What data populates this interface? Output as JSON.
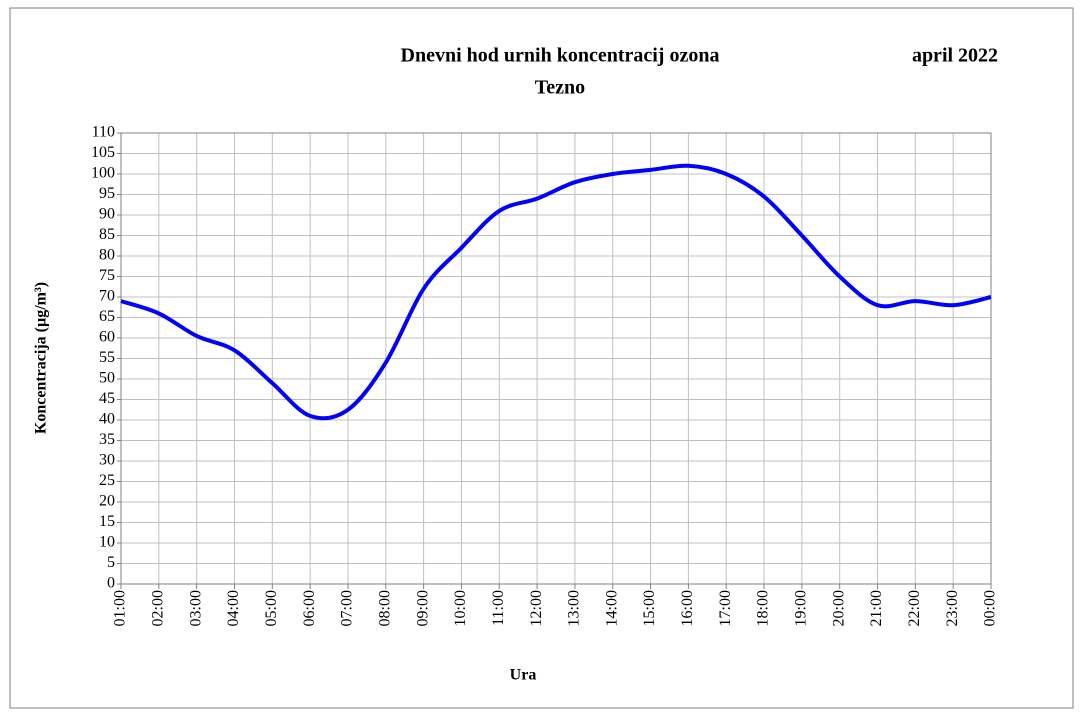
{
  "chart_data": {
    "type": "line",
    "title": "Dnevni hod urnih koncentracij ozona",
    "subtitle": "Tezno",
    "annotation": "april 2022",
    "x_label": "Ura",
    "y_label": "Koncentracija  (µg/m³)",
    "categories": [
      "01:00",
      "02:00",
      "03:00",
      "04:00",
      "05:00",
      "06:00",
      "07:00",
      "08:00",
      "09:00",
      "10:00",
      "11:00",
      "12:00",
      "13:00",
      "14:00",
      "15:00",
      "16:00",
      "17:00",
      "18:00",
      "19:00",
      "20:00",
      "21:00",
      "22:00",
      "23:00",
      "00:00"
    ],
    "values": [
      69,
      66,
      60.5,
      57,
      49,
      41,
      42.5,
      54,
      72,
      82,
      91,
      94,
      98,
      100,
      101,
      102,
      100,
      94.5,
      85,
      75,
      68,
      69,
      68,
      70
    ],
    "color": "#0000ff",
    "ylim": [
      0,
      110
    ],
    "yticks": [
      0,
      5,
      10,
      15,
      20,
      25,
      30,
      35,
      40,
      45,
      50,
      55,
      60,
      65,
      70,
      75,
      80,
      85,
      90,
      95,
      100,
      105,
      110
    ],
    "grid": true
  }
}
